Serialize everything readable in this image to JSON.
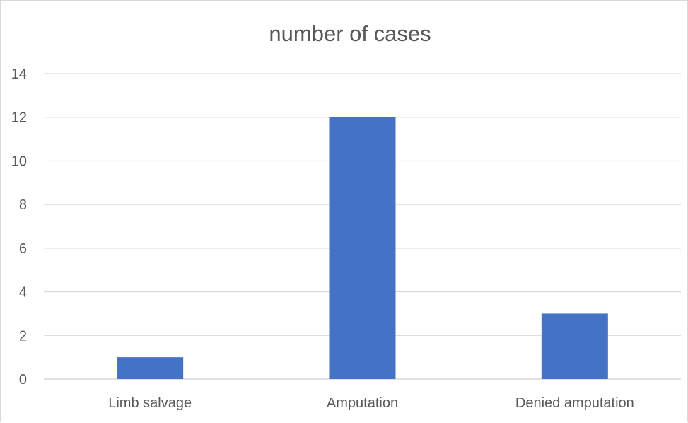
{
  "chart_data": {
    "type": "bar",
    "title": "number of cases",
    "categories": [
      "Limb salvage",
      "Amputation",
      "Denied amputation"
    ],
    "values": [
      1,
      12,
      3
    ],
    "ylim": [
      0,
      14
    ],
    "yticks": [
      0,
      2,
      4,
      6,
      8,
      10,
      12,
      14
    ],
    "xlabel": "",
    "ylabel": "",
    "grid": true,
    "legend": "none",
    "bar_color": "#4472C4",
    "grid_color": "#d9d9d9",
    "text_color": "#595959"
  }
}
